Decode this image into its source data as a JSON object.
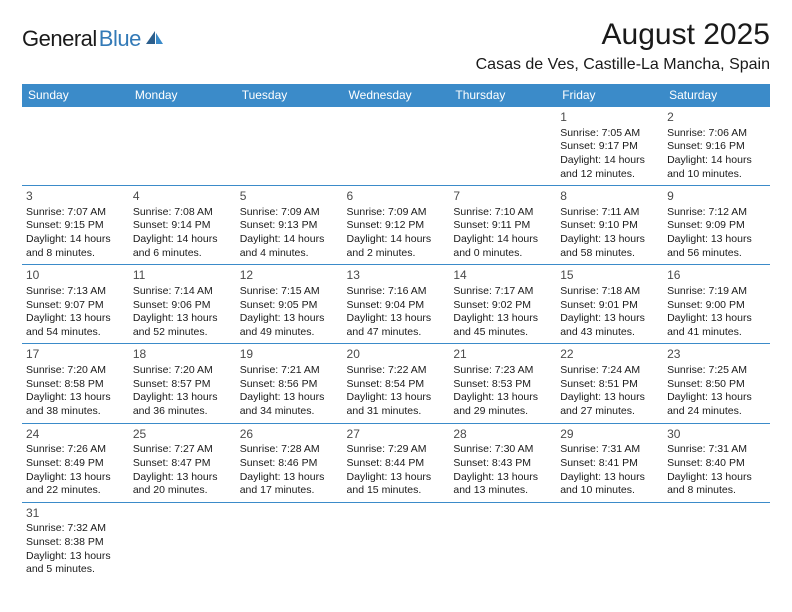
{
  "logo": {
    "general": "General",
    "blue": "Blue"
  },
  "title": "August 2025",
  "location": "Casas de Ves, Castille-La Mancha, Spain",
  "colors": {
    "header_bg": "#3b8bc9",
    "header_text": "#ffffff",
    "row_border": "#3b8bc9",
    "text": "#1a1a1a",
    "logo_blue": "#337ab7",
    "background": "#ffffff"
  },
  "days_of_week": [
    "Sunday",
    "Monday",
    "Tuesday",
    "Wednesday",
    "Thursday",
    "Friday",
    "Saturday"
  ],
  "weeks": [
    [
      null,
      null,
      null,
      null,
      null,
      {
        "n": "1",
        "sunrise": "Sunrise: 7:05 AM",
        "sunset": "Sunset: 9:17 PM",
        "daylight1": "Daylight: 14 hours",
        "daylight2": "and 12 minutes."
      },
      {
        "n": "2",
        "sunrise": "Sunrise: 7:06 AM",
        "sunset": "Sunset: 9:16 PM",
        "daylight1": "Daylight: 14 hours",
        "daylight2": "and 10 minutes."
      }
    ],
    [
      {
        "n": "3",
        "sunrise": "Sunrise: 7:07 AM",
        "sunset": "Sunset: 9:15 PM",
        "daylight1": "Daylight: 14 hours",
        "daylight2": "and 8 minutes."
      },
      {
        "n": "4",
        "sunrise": "Sunrise: 7:08 AM",
        "sunset": "Sunset: 9:14 PM",
        "daylight1": "Daylight: 14 hours",
        "daylight2": "and 6 minutes."
      },
      {
        "n": "5",
        "sunrise": "Sunrise: 7:09 AM",
        "sunset": "Sunset: 9:13 PM",
        "daylight1": "Daylight: 14 hours",
        "daylight2": "and 4 minutes."
      },
      {
        "n": "6",
        "sunrise": "Sunrise: 7:09 AM",
        "sunset": "Sunset: 9:12 PM",
        "daylight1": "Daylight: 14 hours",
        "daylight2": "and 2 minutes."
      },
      {
        "n": "7",
        "sunrise": "Sunrise: 7:10 AM",
        "sunset": "Sunset: 9:11 PM",
        "daylight1": "Daylight: 14 hours",
        "daylight2": "and 0 minutes."
      },
      {
        "n": "8",
        "sunrise": "Sunrise: 7:11 AM",
        "sunset": "Sunset: 9:10 PM",
        "daylight1": "Daylight: 13 hours",
        "daylight2": "and 58 minutes."
      },
      {
        "n": "9",
        "sunrise": "Sunrise: 7:12 AM",
        "sunset": "Sunset: 9:09 PM",
        "daylight1": "Daylight: 13 hours",
        "daylight2": "and 56 minutes."
      }
    ],
    [
      {
        "n": "10",
        "sunrise": "Sunrise: 7:13 AM",
        "sunset": "Sunset: 9:07 PM",
        "daylight1": "Daylight: 13 hours",
        "daylight2": "and 54 minutes."
      },
      {
        "n": "11",
        "sunrise": "Sunrise: 7:14 AM",
        "sunset": "Sunset: 9:06 PM",
        "daylight1": "Daylight: 13 hours",
        "daylight2": "and 52 minutes."
      },
      {
        "n": "12",
        "sunrise": "Sunrise: 7:15 AM",
        "sunset": "Sunset: 9:05 PM",
        "daylight1": "Daylight: 13 hours",
        "daylight2": "and 49 minutes."
      },
      {
        "n": "13",
        "sunrise": "Sunrise: 7:16 AM",
        "sunset": "Sunset: 9:04 PM",
        "daylight1": "Daylight: 13 hours",
        "daylight2": "and 47 minutes."
      },
      {
        "n": "14",
        "sunrise": "Sunrise: 7:17 AM",
        "sunset": "Sunset: 9:02 PM",
        "daylight1": "Daylight: 13 hours",
        "daylight2": "and 45 minutes."
      },
      {
        "n": "15",
        "sunrise": "Sunrise: 7:18 AM",
        "sunset": "Sunset: 9:01 PM",
        "daylight1": "Daylight: 13 hours",
        "daylight2": "and 43 minutes."
      },
      {
        "n": "16",
        "sunrise": "Sunrise: 7:19 AM",
        "sunset": "Sunset: 9:00 PM",
        "daylight1": "Daylight: 13 hours",
        "daylight2": "and 41 minutes."
      }
    ],
    [
      {
        "n": "17",
        "sunrise": "Sunrise: 7:20 AM",
        "sunset": "Sunset: 8:58 PM",
        "daylight1": "Daylight: 13 hours",
        "daylight2": "and 38 minutes."
      },
      {
        "n": "18",
        "sunrise": "Sunrise: 7:20 AM",
        "sunset": "Sunset: 8:57 PM",
        "daylight1": "Daylight: 13 hours",
        "daylight2": "and 36 minutes."
      },
      {
        "n": "19",
        "sunrise": "Sunrise: 7:21 AM",
        "sunset": "Sunset: 8:56 PM",
        "daylight1": "Daylight: 13 hours",
        "daylight2": "and 34 minutes."
      },
      {
        "n": "20",
        "sunrise": "Sunrise: 7:22 AM",
        "sunset": "Sunset: 8:54 PM",
        "daylight1": "Daylight: 13 hours",
        "daylight2": "and 31 minutes."
      },
      {
        "n": "21",
        "sunrise": "Sunrise: 7:23 AM",
        "sunset": "Sunset: 8:53 PM",
        "daylight1": "Daylight: 13 hours",
        "daylight2": "and 29 minutes."
      },
      {
        "n": "22",
        "sunrise": "Sunrise: 7:24 AM",
        "sunset": "Sunset: 8:51 PM",
        "daylight1": "Daylight: 13 hours",
        "daylight2": "and 27 minutes."
      },
      {
        "n": "23",
        "sunrise": "Sunrise: 7:25 AM",
        "sunset": "Sunset: 8:50 PM",
        "daylight1": "Daylight: 13 hours",
        "daylight2": "and 24 minutes."
      }
    ],
    [
      {
        "n": "24",
        "sunrise": "Sunrise: 7:26 AM",
        "sunset": "Sunset: 8:49 PM",
        "daylight1": "Daylight: 13 hours",
        "daylight2": "and 22 minutes."
      },
      {
        "n": "25",
        "sunrise": "Sunrise: 7:27 AM",
        "sunset": "Sunset: 8:47 PM",
        "daylight1": "Daylight: 13 hours",
        "daylight2": "and 20 minutes."
      },
      {
        "n": "26",
        "sunrise": "Sunrise: 7:28 AM",
        "sunset": "Sunset: 8:46 PM",
        "daylight1": "Daylight: 13 hours",
        "daylight2": "and 17 minutes."
      },
      {
        "n": "27",
        "sunrise": "Sunrise: 7:29 AM",
        "sunset": "Sunset: 8:44 PM",
        "daylight1": "Daylight: 13 hours",
        "daylight2": "and 15 minutes."
      },
      {
        "n": "28",
        "sunrise": "Sunrise: 7:30 AM",
        "sunset": "Sunset: 8:43 PM",
        "daylight1": "Daylight: 13 hours",
        "daylight2": "and 13 minutes."
      },
      {
        "n": "29",
        "sunrise": "Sunrise: 7:31 AM",
        "sunset": "Sunset: 8:41 PM",
        "daylight1": "Daylight: 13 hours",
        "daylight2": "and 10 minutes."
      },
      {
        "n": "30",
        "sunrise": "Sunrise: 7:31 AM",
        "sunset": "Sunset: 8:40 PM",
        "daylight1": "Daylight: 13 hours",
        "daylight2": "and 8 minutes."
      }
    ],
    [
      {
        "n": "31",
        "sunrise": "Sunrise: 7:32 AM",
        "sunset": "Sunset: 8:38 PM",
        "daylight1": "Daylight: 13 hours",
        "daylight2": "and 5 minutes."
      },
      null,
      null,
      null,
      null,
      null,
      null
    ]
  ]
}
